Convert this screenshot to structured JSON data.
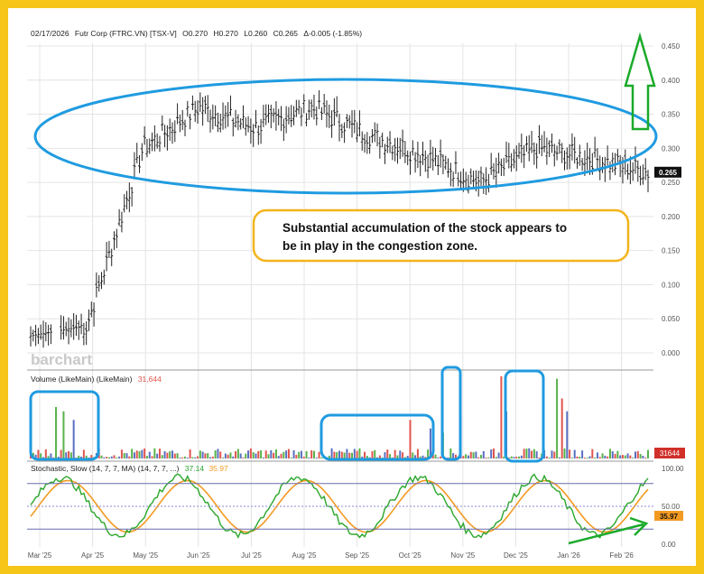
{
  "header": {
    "date": "02/17/2026",
    "name": "Futr Corp (FTRC.VN) [TSX-V]",
    "open": "O0.270",
    "high": "H0.270",
    "low": "L0.260",
    "close": "C0.265",
    "change": "Δ-0.005 (-1.85%)"
  },
  "watermark": "barchart",
  "annotation": {
    "line1": "Substantial accumulation of the stock appears to",
    "line2": "be in play in the congestion zone."
  },
  "colors": {
    "frame": "#f5c518",
    "annotation_blue": "#1f9be0",
    "annotation_green": "#1aaa2a",
    "up": "#58b34a",
    "down": "#e2554f",
    "neutral": "#5a6fc1",
    "stoch_k": "#2aa62a",
    "stoch_d": "#f39a22",
    "callout_border": "#f3b41c"
  },
  "chart_data": [
    {
      "type": "ohlc",
      "symbol": "FTRC.VN",
      "ylim": [
        0,
        0.47
      ],
      "y_ticks": [
        "0.450",
        "0.400",
        "0.350",
        "0.300",
        "0.250",
        "0.200",
        "0.150",
        "0.100",
        "0.050",
        "0.000"
      ],
      "last_price_label": "0.265",
      "x_labels": [
        "Mar '25",
        "Apr '25",
        "May '25",
        "Jun '25",
        "Jul '25",
        "Aug '25",
        "Sep '25",
        "Oct '25",
        "Nov '25",
        "Dec '25",
        "Jan '26",
        "Feb '26"
      ],
      "monthly_close_approx": [
        {
          "month": "Mar '25",
          "close": 0.025
        },
        {
          "month": "Apr '25",
          "close": 0.04
        },
        {
          "month": "May '25",
          "close": 0.3
        },
        {
          "month": "Jun '25",
          "close": 0.36
        },
        {
          "month": "Jul '25",
          "close": 0.33
        },
        {
          "month": "Aug '25",
          "close": 0.36
        },
        {
          "month": "Sep '25",
          "close": 0.32
        },
        {
          "month": "Oct '25",
          "close": 0.29
        },
        {
          "month": "Nov '25",
          "close": 0.25
        },
        {
          "month": "Dec '25",
          "close": 0.3
        },
        {
          "month": "Jan '26",
          "close": 0.285
        },
        {
          "month": "Feb '26",
          "close": 0.265
        }
      ]
    },
    {
      "type": "bar",
      "title": "Volume (LikeMain)  (LikeMain)",
      "last_value_label": "31,644",
      "last_value_tag": "31644"
    },
    {
      "type": "line",
      "title": "Stochastic, Slow (14, 7, 7, MA)  (14, 7, 7, ...)",
      "k_label": "37.14",
      "d_label": "35.97",
      "last_value_tag": "35.97",
      "ylim": [
        0,
        100
      ],
      "y_ticks": [
        "100.00",
        "50.00",
        "0.00"
      ],
      "levels": [
        80,
        50,
        20
      ]
    }
  ]
}
